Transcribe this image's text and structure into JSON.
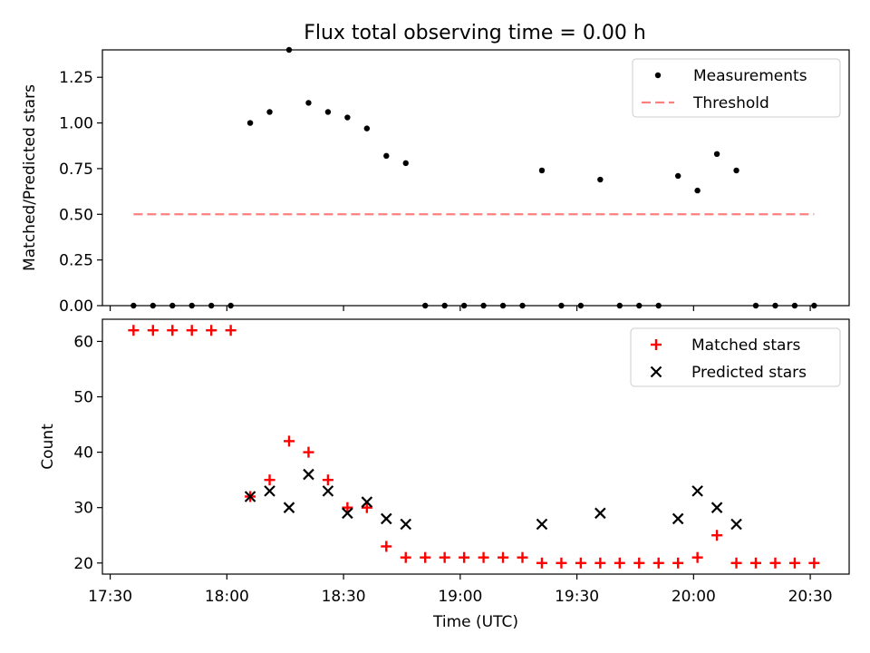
{
  "title": "Flux total observing time = 0.00 h",
  "chart_data": [
    {
      "type": "scatter",
      "title": "Flux total observing time = 0.00 h",
      "xlabel": "",
      "ylabel": "Matched/Predicted stars",
      "xlim": [
        "17:28",
        "20:40"
      ],
      "ylim": [
        0,
        1.4
      ],
      "yticks": [
        0.0,
        0.25,
        0.5,
        0.75,
        1.0,
        1.25
      ],
      "ytick_labels": [
        "0.00",
        "0.25",
        "0.50",
        "0.75",
        "1.00",
        "1.25"
      ],
      "legend": {
        "placement": "top-right",
        "entries": [
          "Measurements",
          "Threshold"
        ]
      },
      "series": [
        {
          "name": "Measurements",
          "marker": "dot",
          "color": "#000000",
          "x": [
            "17:36",
            "17:41",
            "17:46",
            "17:51",
            "17:56",
            "18:01",
            "18:06",
            "18:11",
            "18:16",
            "18:21",
            "18:26",
            "18:31",
            "18:36",
            "18:41",
            "18:46",
            "18:51",
            "18:56",
            "19:01",
            "19:06",
            "19:11",
            "19:16",
            "19:21",
            "19:26",
            "19:31",
            "19:36",
            "19:41",
            "19:46",
            "19:51",
            "19:56",
            "20:01",
            "20:06",
            "20:11",
            "20:16",
            "20:21",
            "20:26",
            "20:31"
          ],
          "y": [
            0,
            0,
            0,
            0,
            0,
            0,
            1.0,
            1.06,
            1.4,
            1.11,
            1.06,
            1.03,
            0.97,
            0.82,
            0.78,
            0,
            0,
            0,
            0,
            0,
            0,
            0.74,
            0,
            0,
            0.69,
            0,
            0,
            0,
            0.71,
            0.63,
            0.83,
            0.74,
            0,
            0,
            0,
            0
          ]
        },
        {
          "name": "Threshold",
          "marker": "dashed-line",
          "color": "#ff7f7f",
          "x": [
            "17:36",
            "20:31"
          ],
          "y": [
            0.5,
            0.5
          ]
        }
      ]
    },
    {
      "type": "scatter",
      "title": "",
      "xlabel": "Time (UTC)",
      "ylabel": "Count",
      "xlim": [
        "17:28",
        "20:40"
      ],
      "ylim": [
        18,
        64
      ],
      "yticks": [
        20,
        30,
        40,
        50,
        60
      ],
      "ytick_labels": [
        "20",
        "30",
        "40",
        "50",
        "60"
      ],
      "xticks": [
        "17:30",
        "18:00",
        "18:30",
        "19:00",
        "19:30",
        "20:00",
        "20:30"
      ],
      "xtick_labels": [
        "17:30",
        "18:00",
        "18:30",
        "19:00",
        "19:30",
        "20:00",
        "20:30"
      ],
      "legend": {
        "placement": "top-right",
        "entries": [
          "Matched stars",
          "Predicted stars"
        ]
      },
      "series": [
        {
          "name": "Matched stars",
          "marker": "plus",
          "color": "#ff0000",
          "x": [
            "17:36",
            "17:41",
            "17:46",
            "17:51",
            "17:56",
            "18:01",
            "18:06",
            "18:11",
            "18:16",
            "18:21",
            "18:26",
            "18:31",
            "18:36",
            "18:41",
            "18:46",
            "18:51",
            "18:56",
            "19:01",
            "19:06",
            "19:11",
            "19:16",
            "19:21",
            "19:26",
            "19:31",
            "19:36",
            "19:41",
            "19:46",
            "19:51",
            "19:56",
            "20:01",
            "20:06",
            "20:11",
            "20:16",
            "20:21",
            "20:26",
            "20:31"
          ],
          "y": [
            62,
            62,
            62,
            62,
            62,
            62,
            32,
            35,
            42,
            40,
            35,
            30,
            30,
            23,
            21,
            21,
            21,
            21,
            21,
            21,
            21,
            20,
            20,
            20,
            20,
            20,
            20,
            20,
            20,
            21,
            25,
            20,
            20,
            20,
            20,
            20
          ]
        },
        {
          "name": "Predicted stars",
          "marker": "x",
          "color": "#000000",
          "x": [
            "18:06",
            "18:11",
            "18:16",
            "18:21",
            "18:26",
            "18:31",
            "18:36",
            "18:41",
            "18:46",
            "19:21",
            "19:36",
            "19:56",
            "20:01",
            "20:06",
            "20:11"
          ],
          "y": [
            32,
            33,
            30,
            36,
            33,
            29,
            31,
            28,
            27,
            27,
            29,
            28,
            33,
            30,
            27
          ]
        }
      ]
    }
  ]
}
